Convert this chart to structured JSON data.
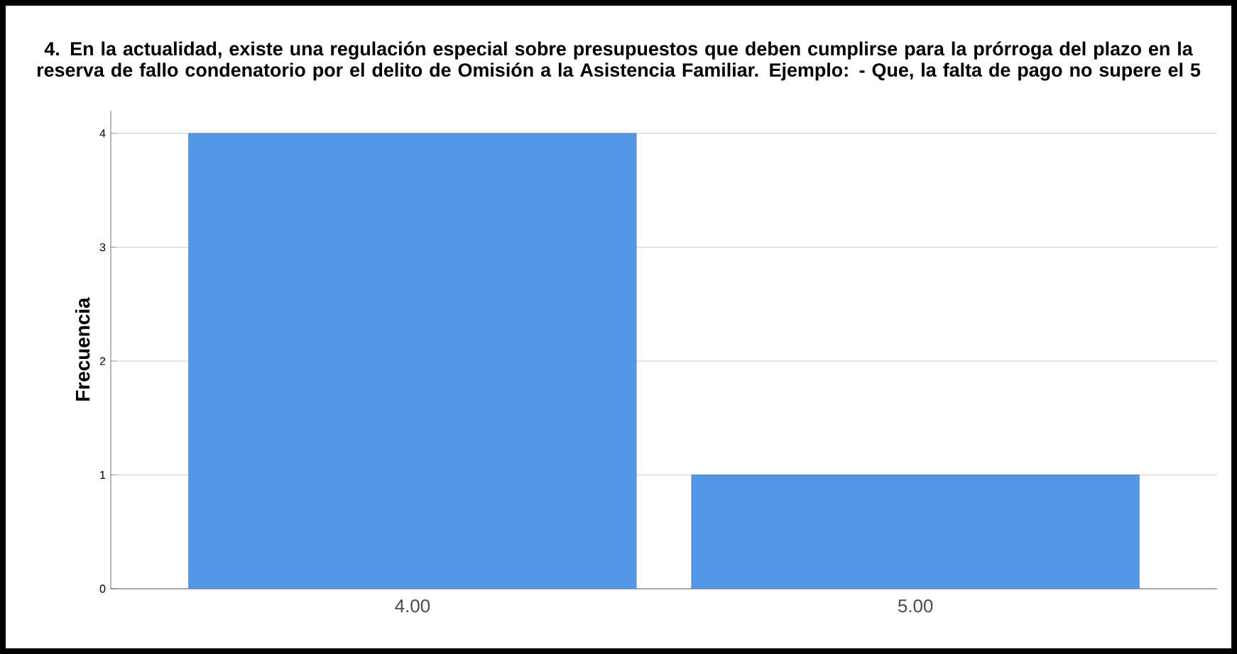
{
  "chart_data": {
    "type": "bar",
    "title": "4. En la actualidad, existe una regulación especial sobre presupuestos que deben cumplirse para la prórroga del plazo en la reserva de fallo condenatorio por el delito de Omisión a la Asistencia Familiar. Ejemplo: - Que, la falta de pago no supere el 5",
    "ylabel": "Frecuencia",
    "categories": [
      "4.00",
      "5.00"
    ],
    "values": [
      4,
      1
    ],
    "color": "#5596e6",
    "ylim": [
      0,
      4.2
    ],
    "yticks": [
      0,
      1,
      2,
      3,
      4
    ],
    "grid": "y"
  }
}
